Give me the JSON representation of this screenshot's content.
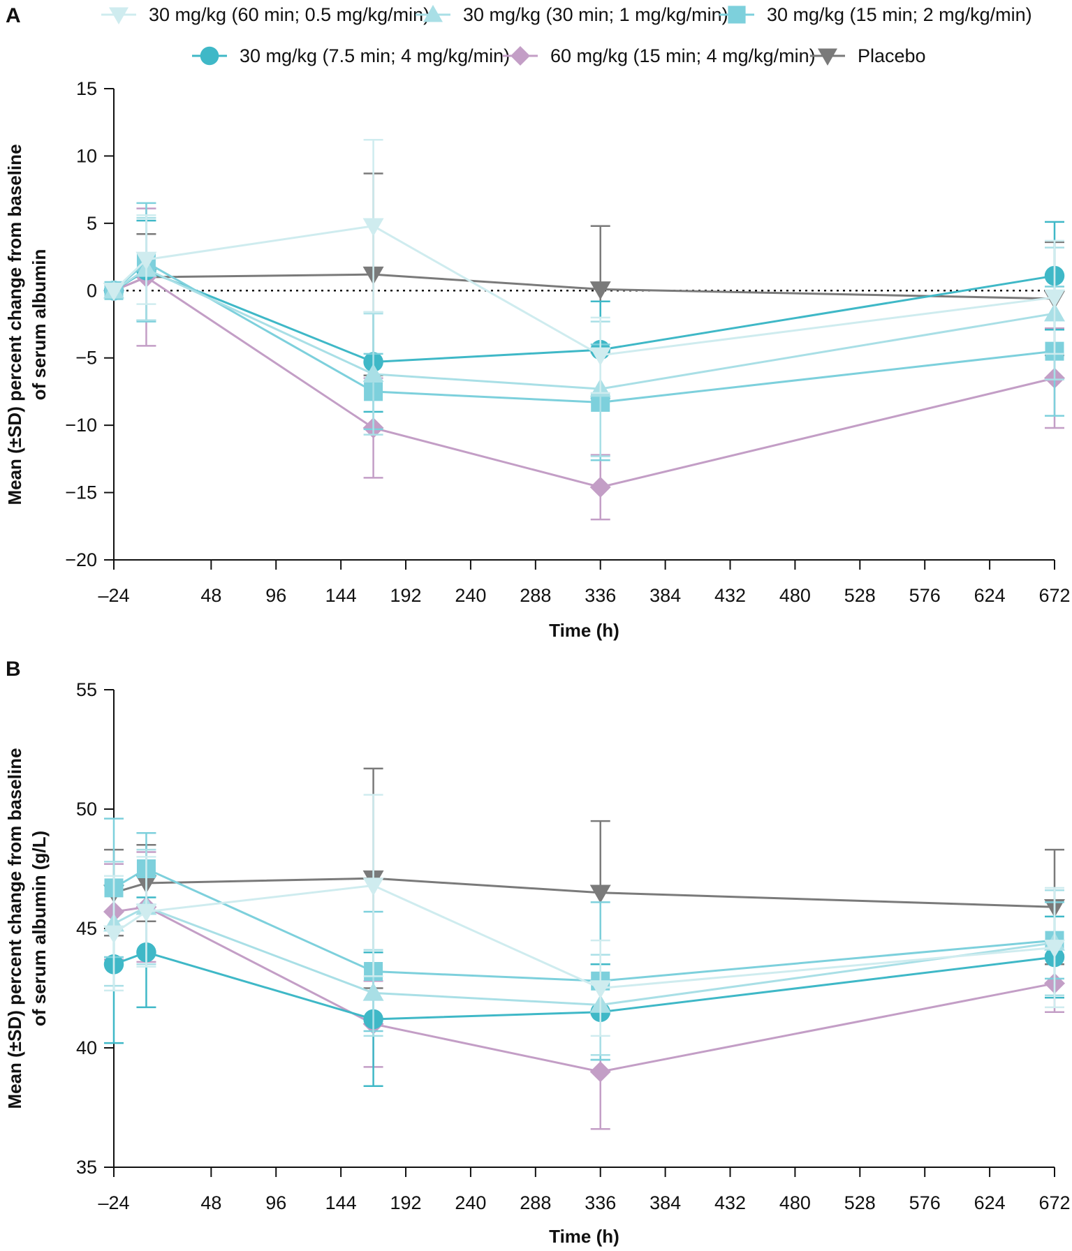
{
  "legend": [
    {
      "label": "30 mg/kg (60 min; 0.5 mg/kg/min)",
      "color": "#cfecef",
      "marker": "triangle-down"
    },
    {
      "label": "30 mg/kg (30 min; 1 mg/kg/min)",
      "color": "#a9dfe6",
      "marker": "triangle-up"
    },
    {
      "label": "30 mg/kg (15 min; 2 mg/kg/min)",
      "color": "#7dd0dc",
      "marker": "square"
    },
    {
      "label": "30 mg/kg (7.5 min; 4 mg/kg/min)",
      "color": "#3fb8c7",
      "marker": "circle"
    },
    {
      "label": "60 mg/kg (15 min; 4 mg/kg/min)",
      "color": "#c39ec6",
      "marker": "diamond"
    },
    {
      "label": "Placebo",
      "color": "#7a7a7a",
      "marker": "triangle-down"
    }
  ],
  "chart_data": [
    {
      "panel": "A",
      "type": "line",
      "xlabel": "Time (h)",
      "ylabel": [
        "Mean (±SD) percent change from baseline",
        "of serum albumin"
      ],
      "xlim": [
        -24,
        672
      ],
      "ylim": [
        -20,
        15
      ],
      "xticks": [
        -24,
        48,
        96,
        144,
        192,
        240,
        288,
        336,
        384,
        432,
        480,
        528,
        576,
        624,
        672
      ],
      "xtick_labels": [
        "–24",
        "48",
        "96",
        "144",
        "192",
        "240",
        "288",
        "336",
        "384",
        "432",
        "480",
        "528",
        "576",
        "624",
        "672"
      ],
      "yticks": [
        15,
        10,
        5,
        0,
        -5,
        -10,
        -15,
        -20
      ],
      "ytick_labels": [
        "15",
        "10",
        "5",
        "0",
        "−5",
        "−10",
        "−15",
        "−20"
      ],
      "reference_line": 0,
      "series": [
        {
          "name": "30 mg/kg (60 min; 0.5 mg/kg/min)",
          "x": [
            -24,
            0,
            168,
            336,
            672
          ],
          "y": [
            0,
            2.3,
            4.8,
            -4.8,
            -0.5
          ],
          "sd": [
            0,
            3.3,
            6.4,
            2.8,
            4.2
          ]
        },
        {
          "name": "30 mg/kg (30 min; 1 mg/kg/min)",
          "x": [
            -24,
            0,
            168,
            336,
            672
          ],
          "y": [
            0,
            1.6,
            -6.2,
            -7.3,
            -1.7
          ],
          "sd": [
            0,
            3.8,
            4.5,
            5.0,
            4.9
          ]
        },
        {
          "name": "30 mg/kg (15 min; 2 mg/kg/min)",
          "x": [
            -24,
            0,
            168,
            336,
            672
          ],
          "y": [
            0,
            2.1,
            -7.5,
            -8.3,
            -4.5
          ],
          "sd": [
            0,
            4.4,
            2.8,
            4.3,
            4.8
          ]
        },
        {
          "name": "30 mg/kg (7.5 min; 4 mg/kg/min)",
          "x": [
            -24,
            0,
            168,
            336,
            672
          ],
          "y": [
            0,
            1.5,
            -5.3,
            -4.4,
            1.1
          ],
          "sd": [
            0,
            3.7,
            3.7,
            3.6,
            4.0
          ]
        },
        {
          "name": "60 mg/kg (15 min; 4 mg/kg/min)",
          "x": [
            -24,
            0,
            168,
            336,
            672
          ],
          "y": [
            0,
            1.0,
            -10.2,
            -14.6,
            -6.5
          ],
          "sd": [
            0,
            5.1,
            3.7,
            2.4,
            3.7
          ]
        },
        {
          "name": "Placebo",
          "x": [
            -24,
            0,
            168,
            336,
            672
          ],
          "y": [
            0,
            1.0,
            1.2,
            0.1,
            -0.6
          ],
          "sd": [
            0,
            3.2,
            7.5,
            4.7,
            4.2
          ]
        }
      ]
    },
    {
      "panel": "B",
      "type": "line",
      "xlabel": "Time (h)",
      "ylabel": [
        "Mean (±SD) percent change from baseline",
        "of serum albumin (g/L)"
      ],
      "xlim": [
        -24,
        672
      ],
      "ylim": [
        35,
        55
      ],
      "xticks": [
        -24,
        48,
        96,
        144,
        192,
        240,
        288,
        336,
        384,
        432,
        480,
        528,
        576,
        624,
        672
      ],
      "xtick_labels": [
        "–24",
        "48",
        "96",
        "144",
        "192",
        "240",
        "288",
        "336",
        "384",
        "432",
        "480",
        "528",
        "576",
        "624",
        "672"
      ],
      "yticks": [
        55,
        50,
        45,
        40,
        35
      ],
      "ytick_labels": [
        "55",
        "50",
        "45",
        "40",
        "35"
      ],
      "series": [
        {
          "name": "30 mg/kg (60 min; 0.5 mg/kg/min)",
          "x": [
            -24,
            0,
            168,
            336,
            672
          ],
          "y": [
            44.8,
            45.7,
            46.8,
            42.5,
            44.2
          ],
          "sd": [
            2.4,
            2.3,
            3.8,
            2.0,
            2.5
          ]
        },
        {
          "name": "30 mg/kg (30 min; 1 mg/kg/min)",
          "x": [
            -24,
            0,
            168,
            336,
            672
          ],
          "y": [
            45.2,
            45.9,
            42.3,
            41.8,
            44.4
          ],
          "sd": [
            2.6,
            2.4,
            1.8,
            2.1,
            2.2
          ]
        },
        {
          "name": "30 mg/kg (15 min; 2 mg/kg/min)",
          "x": [
            -24,
            0,
            168,
            336,
            672
          ],
          "y": [
            46.7,
            47.5,
            43.2,
            42.8,
            44.5
          ],
          "sd": [
            2.9,
            1.5,
            2.5,
            3.3,
            1.6
          ]
        },
        {
          "name": "30 mg/kg (7.5 min; 4 mg/kg/min)",
          "x": [
            -24,
            0,
            168,
            336,
            672
          ],
          "y": [
            43.5,
            44.0,
            41.2,
            41.5,
            43.8
          ],
          "sd": [
            3.3,
            2.3,
            2.8,
            2.0,
            1.7
          ]
        },
        {
          "name": "60 mg/kg (15 min; 4 mg/kg/min)",
          "x": [
            -24,
            0,
            168,
            336,
            672
          ],
          "y": [
            45.7,
            45.9,
            41.0,
            39.0,
            42.7
          ],
          "sd": [
            2.0,
            2.3,
            1.8,
            2.4,
            1.2
          ]
        },
        {
          "name": "Placebo",
          "x": [
            -24,
            0,
            168,
            336,
            672
          ],
          "y": [
            46.5,
            46.9,
            47.1,
            46.5,
            45.9
          ],
          "sd": [
            1.8,
            1.6,
            4.6,
            3.0,
            2.4
          ]
        }
      ]
    }
  ]
}
